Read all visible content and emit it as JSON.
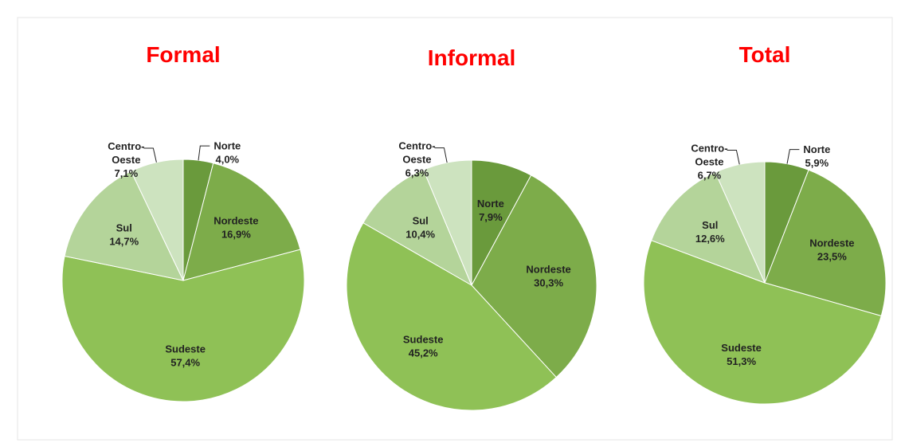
{
  "chart_data": [
    {
      "type": "pie",
      "title": "Formal",
      "categories": [
        "Norte",
        "Nordeste",
        "Sudeste",
        "Sul",
        "Centro-Oeste"
      ],
      "values": [
        4.0,
        16.9,
        57.4,
        14.7,
        7.1
      ],
      "value_labels": [
        "4,0%",
        "16,9%",
        "57,4%",
        "14,7%",
        "7,1%"
      ],
      "colors": [
        "#6a9a3c",
        "#7dac4a",
        "#8fc156",
        "#b4d49a",
        "#cde3bf"
      ]
    },
    {
      "type": "pie",
      "title": "Informal",
      "categories": [
        "Norte",
        "Nordeste",
        "Sudeste",
        "Sul",
        "Centro-Oeste"
      ],
      "values": [
        7.9,
        30.3,
        45.2,
        10.4,
        6.3
      ],
      "value_labels": [
        "7,9%",
        "30,3%",
        "45,2%",
        "10,4%",
        "6,3%"
      ],
      "colors": [
        "#6a9a3c",
        "#7dac4a",
        "#8fc156",
        "#b4d49a",
        "#cde3bf"
      ]
    },
    {
      "type": "pie",
      "title": "Total",
      "categories": [
        "Norte",
        "Nordeste",
        "Sudeste",
        "Sul",
        "Centro-Oeste"
      ],
      "values": [
        5.9,
        23.5,
        51.3,
        12.6,
        6.7
      ],
      "value_labels": [
        "5,9%",
        "23,5%",
        "51,3%",
        "12,6%",
        "6,7%"
      ],
      "colors": [
        "#6a9a3c",
        "#7dac4a",
        "#8fc156",
        "#b4d49a",
        "#cde3bf"
      ]
    }
  ]
}
